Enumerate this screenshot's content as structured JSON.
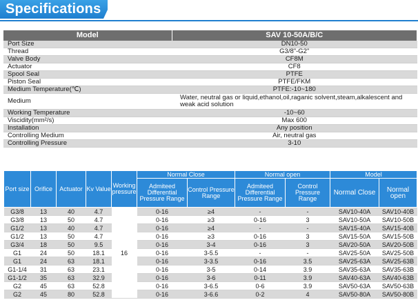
{
  "header": {
    "title": "Specifications"
  },
  "spec": {
    "header_left": "Model",
    "header_right": "SAV 10-50A/B/C",
    "rows": [
      {
        "label": "Port Size",
        "value": "DN10-50"
      },
      {
        "label": "Thread",
        "value": "G3/8\"-G2\""
      },
      {
        "label": "Valve Body",
        "value": "CF8M"
      },
      {
        "label": "Actuator",
        "value": "CF8"
      },
      {
        "label": "Spool Seal",
        "value": "PTFE"
      },
      {
        "label": "Piston Seal",
        "value": "PTFE/FKM"
      },
      {
        "label": "Medium Temperature(℃)",
        "value": "PTFE:-10~180"
      },
      {
        "label": "Medium",
        "value": "Water, neutral gas or liquid,ethanol,oil,raganic solvent,steam,alkalescent and weak acid solution"
      },
      {
        "label": "Working Temperature",
        "value": "-10~60"
      },
      {
        "label": "Viscidity(mm²/s)",
        "value": "Max 600"
      },
      {
        "label": "Installation",
        "value": "Any position"
      },
      {
        "label": "Controlling Medium",
        "value": "Air, neutral gas"
      },
      {
        "label": "Controlling Pressure",
        "value": "3-10"
      }
    ]
  },
  "model_table": {
    "headers": {
      "port_size": "Port size",
      "orifice": "Orifice",
      "actuator": "Actuator",
      "kv": "Kv Value",
      "working_pressure": "Working pressure",
      "normal_close": "Normal Close",
      "normal_open": "Normal open",
      "model": "Model",
      "admitted": "Admiteed Differential Pressure Range",
      "control": "Control Pressure Range",
      "model_nc": "Normal Close",
      "model_no": "Normal open"
    },
    "working_pressure_value": "16",
    "rows": [
      {
        "port": "G3/8",
        "orifice": "13",
        "actuator": "40",
        "kv": "4.7",
        "nc_adm": "0-16",
        "nc_ctrl": "≥4",
        "no_adm": "-",
        "no_ctrl": "-",
        "model_nc": "SAV10-40A",
        "model_no": "SAV10-40B"
      },
      {
        "port": "G3/8",
        "orifice": "13",
        "actuator": "50",
        "kv": "4.7",
        "nc_adm": "0-16",
        "nc_ctrl": "≥3",
        "no_adm": "0-16",
        "no_ctrl": "3",
        "model_nc": "SAV10-50A",
        "model_no": "SAV10-50B"
      },
      {
        "port": "G1/2",
        "orifice": "13",
        "actuator": "40",
        "kv": "4.7",
        "nc_adm": "0-16",
        "nc_ctrl": "≥4",
        "no_adm": "-",
        "no_ctrl": "-",
        "model_nc": "SAV15-40A",
        "model_no": "SAV15-40B"
      },
      {
        "port": "G1/2",
        "orifice": "13",
        "actuator": "50",
        "kv": "4.7",
        "nc_adm": "0-16",
        "nc_ctrl": "≥3",
        "no_adm": "0-16",
        "no_ctrl": "3",
        "model_nc": "SAV15-50A",
        "model_no": "SAV15-50B"
      },
      {
        "port": "G3/4",
        "orifice": "18",
        "actuator": "50",
        "kv": "9.5",
        "nc_adm": "0-16",
        "nc_ctrl": "3-4",
        "no_adm": "0-16",
        "no_ctrl": "3",
        "model_nc": "SAV20-50A",
        "model_no": "SAV20-50B"
      },
      {
        "port": "G1",
        "orifice": "24",
        "actuator": "50",
        "kv": "18.1",
        "nc_adm": "0-16",
        "nc_ctrl": "3-5.5",
        "no_adm": "-",
        "no_ctrl": "-",
        "model_nc": "SAV25-50A",
        "model_no": "SAV25-50B"
      },
      {
        "port": "G1",
        "orifice": "24",
        "actuator": "63",
        "kv": "18.1",
        "nc_adm": "0-16",
        "nc_ctrl": "3-3.5",
        "no_adm": "0-16",
        "no_ctrl": "3.5",
        "model_nc": "SAV25-63A",
        "model_no": "SAV25-63B"
      },
      {
        "port": "G1-1/4",
        "orifice": "31",
        "actuator": "63",
        "kv": "23.1",
        "nc_adm": "0-16",
        "nc_ctrl": "3-5",
        "no_adm": "0-14",
        "no_ctrl": "3.9",
        "model_nc": "SAV35-63A",
        "model_no": "SAV35-63B"
      },
      {
        "port": "G1-1/2",
        "orifice": "35",
        "actuator": "63",
        "kv": "32.9",
        "nc_adm": "0-16",
        "nc_ctrl": "3-6",
        "no_adm": "0-11",
        "no_ctrl": "3.9",
        "model_nc": "SAV40-63A",
        "model_no": "SAV40-63B"
      },
      {
        "port": "G2",
        "orifice": "45",
        "actuator": "63",
        "kv": "52.8",
        "nc_adm": "0-16",
        "nc_ctrl": "3-6.5",
        "no_adm": "0-6",
        "no_ctrl": "3.9",
        "model_nc": "SAV50-63A",
        "model_no": "SAV50-63B"
      },
      {
        "port": "G2",
        "orifice": "45",
        "actuator": "80",
        "kv": "52.8",
        "nc_adm": "0-16",
        "nc_ctrl": "3-6.6",
        "no_adm": "0-2",
        "no_ctrl": "4",
        "model_nc": "SAV50-80A",
        "model_no": "SAV50-80B"
      }
    ]
  }
}
